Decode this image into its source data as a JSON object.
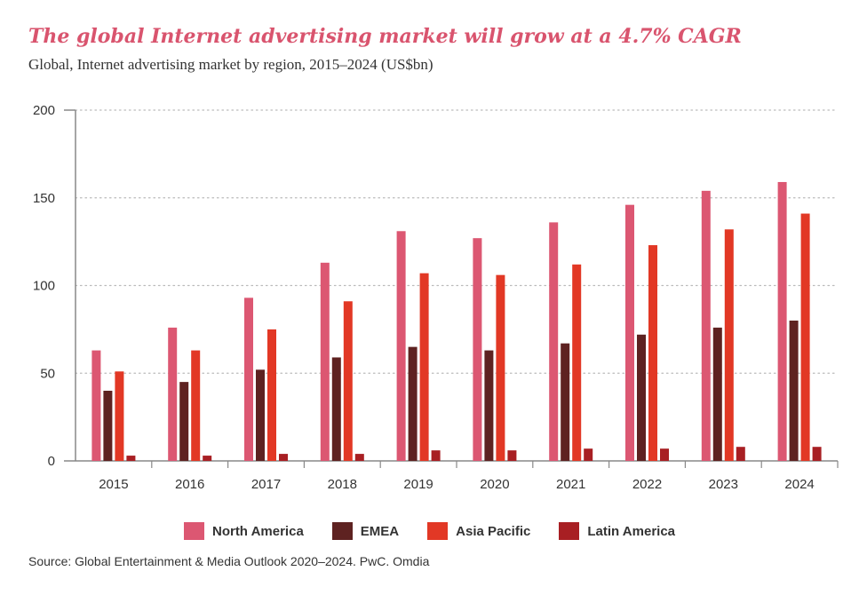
{
  "title": "The global Internet advertising market will grow at a 4.7% CAGR",
  "subtitle": "Global, Internet advertising market by region, 2015–2024 (US$bn)",
  "source": "Source: Global Entertainment & Media Outlook 2020–2024. PwC. Omdia",
  "chart_data": {
    "type": "bar",
    "title": "The global Internet advertising market will grow at a 4.7% CAGR",
    "subtitle": "Global, Internet advertising market by region, 2015–2024 (US$bn)",
    "categories": [
      "2015",
      "2016",
      "2017",
      "2018",
      "2019",
      "2020",
      "2021",
      "2022",
      "2023",
      "2024"
    ],
    "series": [
      {
        "name": "North America",
        "color": "#dc5772",
        "values": [
          63,
          76,
          93,
          113,
          131,
          127,
          136,
          146,
          154,
          159
        ]
      },
      {
        "name": "EMEA",
        "color": "#5e2221",
        "values": [
          40,
          45,
          52,
          59,
          65,
          63,
          67,
          72,
          76,
          80
        ]
      },
      {
        "name": "Asia Pacific",
        "color": "#e23825",
        "values": [
          51,
          63,
          75,
          91,
          107,
          106,
          112,
          123,
          132,
          141
        ]
      },
      {
        "name": "Latin America",
        "color": "#a81f23",
        "values": [
          3,
          3,
          4,
          4,
          6,
          6,
          7,
          7,
          8,
          8
        ]
      }
    ],
    "yticks": [
      "0",
      "50",
      "100",
      "150",
      "200"
    ],
    "ylim": [
      0,
      200
    ],
    "grid": "horizontal dotted",
    "legend": "bottom"
  }
}
